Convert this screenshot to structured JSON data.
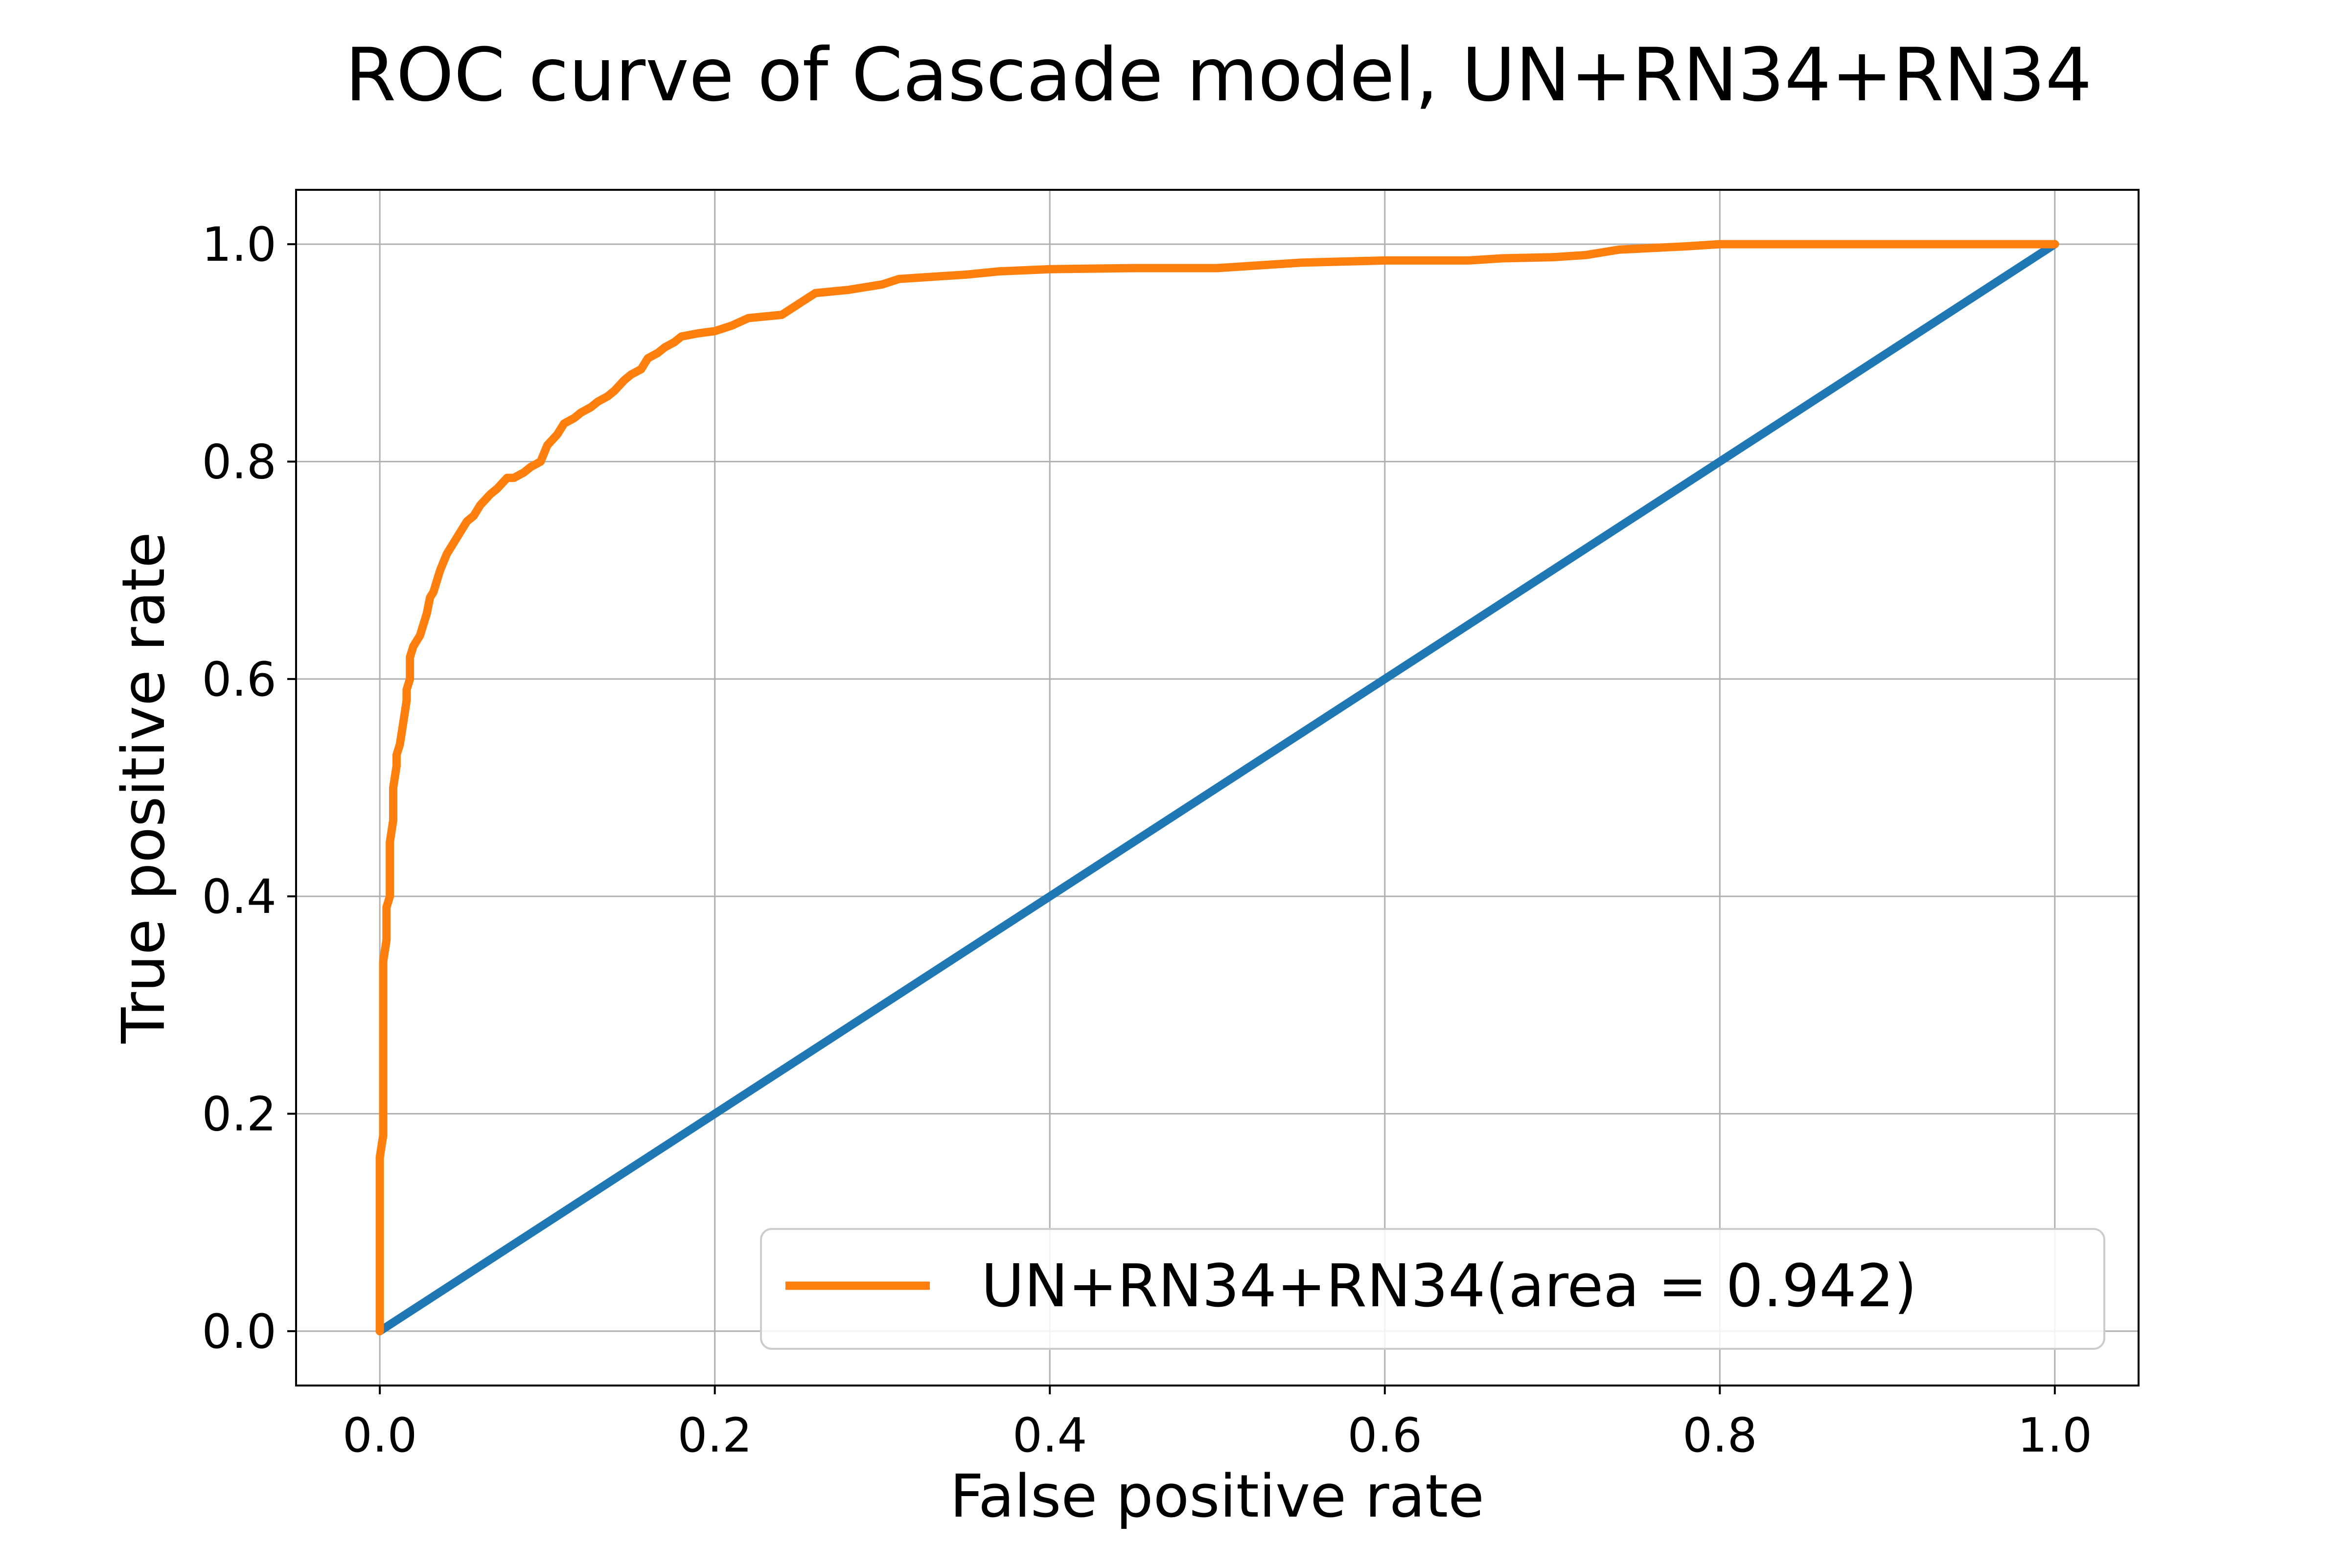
{
  "chart_data": {
    "type": "line",
    "title": "ROC curve of Cascade model, UN+RN34+RN34",
    "xlabel": "False positive rate",
    "ylabel": "True positive rate",
    "xlim": [
      -0.05,
      1.05
    ],
    "ylim": [
      -0.05,
      1.05
    ],
    "x_ticks": [
      {
        "value": 0.0,
        "label": "0.0"
      },
      {
        "value": 0.2,
        "label": "0.2"
      },
      {
        "value": 0.4,
        "label": "0.4"
      },
      {
        "value": 0.6,
        "label": "0.6"
      },
      {
        "value": 0.8,
        "label": "0.8"
      },
      {
        "value": 1.0,
        "label": "1.0"
      }
    ],
    "y_ticks": [
      {
        "value": 0.0,
        "label": "0.0"
      },
      {
        "value": 0.2,
        "label": "0.2"
      },
      {
        "value": 0.4,
        "label": "0.4"
      },
      {
        "value": 0.6,
        "label": "0.6"
      },
      {
        "value": 0.8,
        "label": "0.8"
      },
      {
        "value": 1.0,
        "label": "1.0"
      }
    ],
    "grid": true,
    "legend_position": "lower-right",
    "series": [
      {
        "role": "diagonal",
        "color": "#1f77b4",
        "x": [
          0.0,
          1.0
        ],
        "y": [
          0.0,
          1.0
        ]
      },
      {
        "name": "UN+RN34+RN34(area = 0.942)",
        "role": "roc",
        "color": "#ff7f0e",
        "x": [
          0.0,
          0.0,
          0.002,
          0.002,
          0.004,
          0.004,
          0.006,
          0.006,
          0.008,
          0.008,
          0.01,
          0.01,
          0.012,
          0.014,
          0.016,
          0.016,
          0.018,
          0.018,
          0.02,
          0.022,
          0.024,
          0.026,
          0.028,
          0.03,
          0.032,
          0.034,
          0.036,
          0.04,
          0.044,
          0.048,
          0.052,
          0.056,
          0.06,
          0.066,
          0.07,
          0.076,
          0.08,
          0.086,
          0.09,
          0.096,
          0.1,
          0.106,
          0.11,
          0.116,
          0.12,
          0.126,
          0.13,
          0.136,
          0.14,
          0.146,
          0.15,
          0.156,
          0.16,
          0.166,
          0.17,
          0.176,
          0.18,
          0.19,
          0.2,
          0.21,
          0.22,
          0.24,
          0.25,
          0.26,
          0.28,
          0.3,
          0.31,
          0.33,
          0.35,
          0.37,
          0.4,
          0.45,
          0.5,
          0.52,
          0.55,
          0.6,
          0.65,
          0.67,
          0.7,
          0.72,
          0.74,
          0.78,
          0.8,
          0.9,
          1.0
        ],
        "y": [
          0.0,
          0.16,
          0.18,
          0.34,
          0.36,
          0.39,
          0.4,
          0.45,
          0.47,
          0.5,
          0.52,
          0.53,
          0.54,
          0.56,
          0.58,
          0.59,
          0.6,
          0.62,
          0.63,
          0.635,
          0.64,
          0.65,
          0.66,
          0.675,
          0.68,
          0.69,
          0.7,
          0.715,
          0.725,
          0.735,
          0.745,
          0.75,
          0.76,
          0.77,
          0.775,
          0.785,
          0.785,
          0.79,
          0.795,
          0.8,
          0.815,
          0.825,
          0.835,
          0.84,
          0.845,
          0.85,
          0.855,
          0.86,
          0.865,
          0.875,
          0.88,
          0.885,
          0.895,
          0.9,
          0.905,
          0.91,
          0.915,
          0.918,
          0.92,
          0.925,
          0.932,
          0.935,
          0.945,
          0.955,
          0.958,
          0.963,
          0.968,
          0.97,
          0.972,
          0.975,
          0.977,
          0.978,
          0.978,
          0.98,
          0.983,
          0.985,
          0.985,
          0.987,
          0.988,
          0.99,
          0.995,
          0.998,
          1.0,
          1.0,
          1.0
        ]
      }
    ]
  },
  "legend": {
    "entry_label": "UN+RN34+RN34(area = 0.942)"
  }
}
